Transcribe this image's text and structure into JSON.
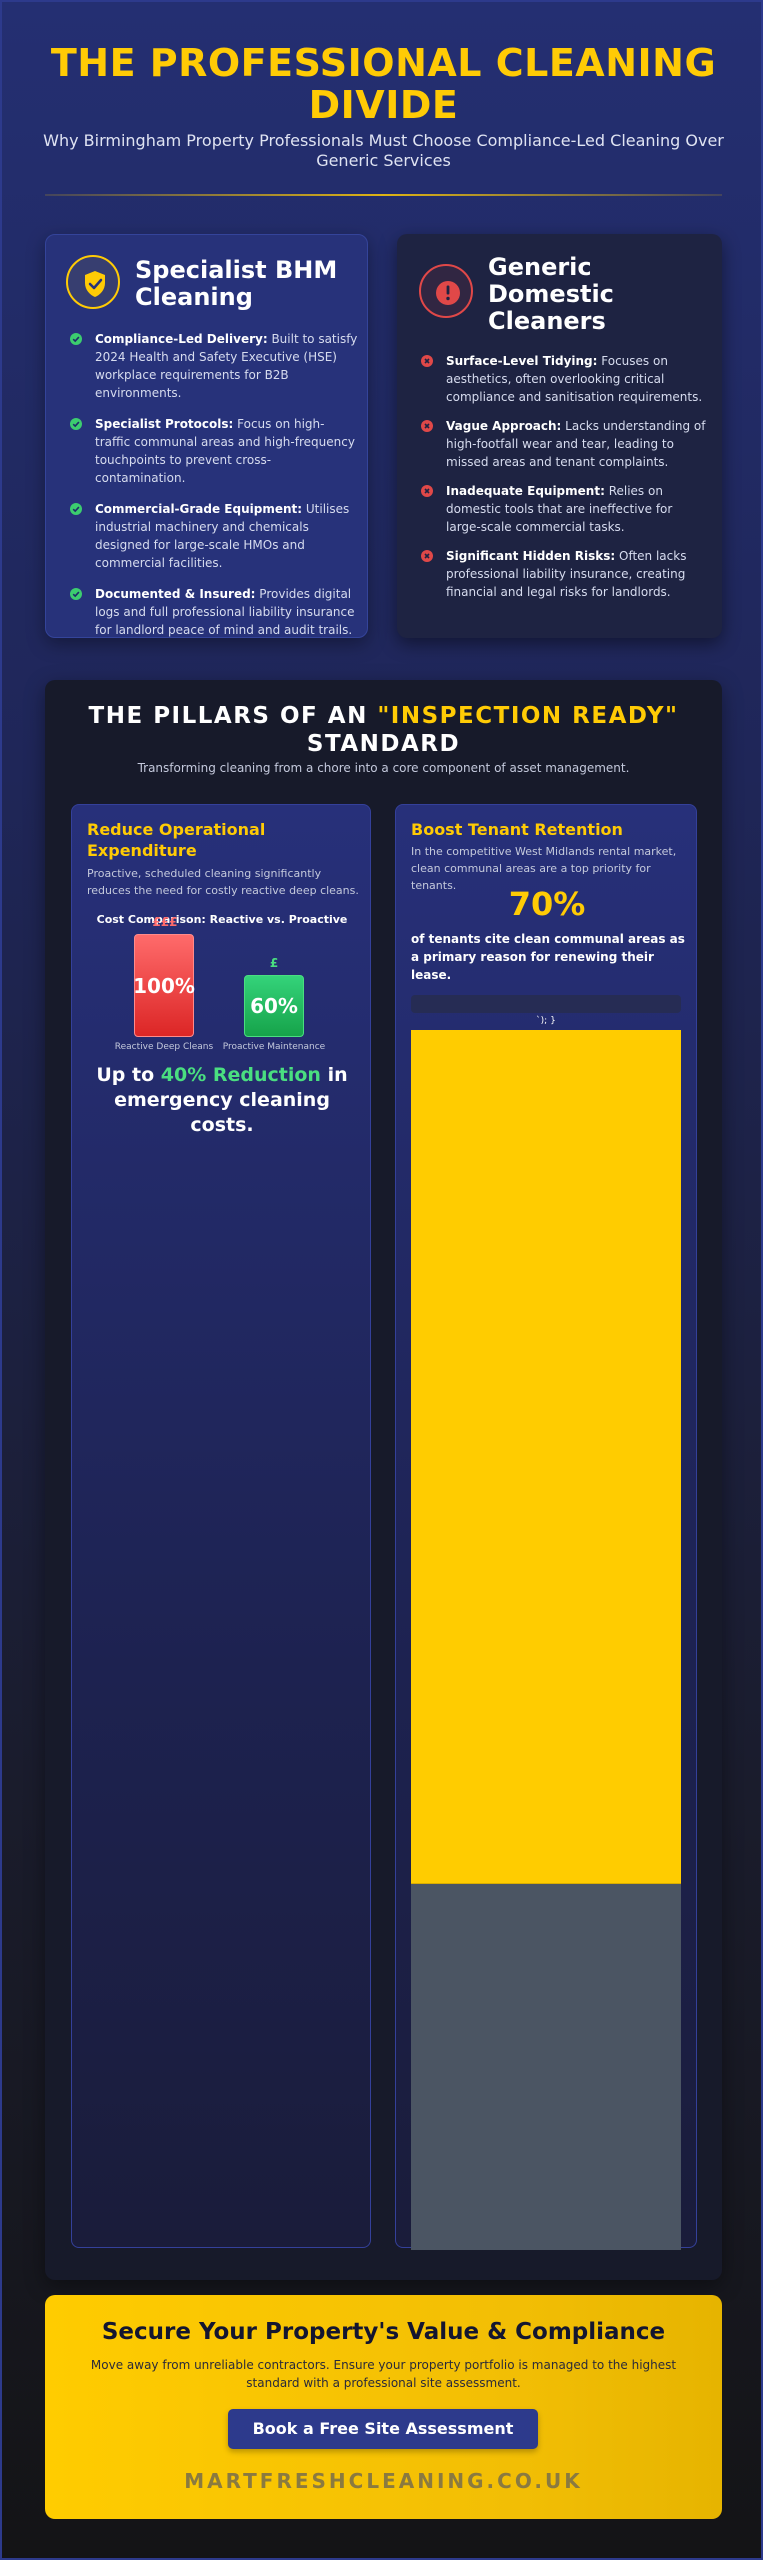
{
  "header": {
    "title": "THE PROFESSIONAL CLEANING DIVIDE",
    "subtitle": "Why Birmingham Property Professionals Must Choose Compliance-Led Cleaning Over Generic Services"
  },
  "specialist": {
    "icon": "shield-check-icon",
    "heading": "Specialist BHM Cleaning",
    "items": [
      {
        "label": "Compliance-Led Delivery:",
        "text": " Built to satisfy 2024 Health and Safety Executive (HSE) workplace requirements for B2B environments."
      },
      {
        "label": "Specialist Protocols:",
        "text": " Focus on high-traffic communal areas and high-frequency touchpoints to prevent cross-contamination."
      },
      {
        "label": "Commercial-Grade Equipment:",
        "text": " Utilises industrial machinery and chemicals designed for large-scale HMOs and commercial facilities."
      },
      {
        "label": "Documented & Insured:",
        "text": " Provides digital logs and full professional liability insurance for landlord peace of mind and audit trails."
      }
    ]
  },
  "generic": {
    "icon": "warning-icon",
    "heading": "Generic Domestic Cleaners",
    "items": [
      {
        "label": "Surface-Level Tidying:",
        "text": " Focuses on aesthetics, often overlooking critical compliance and sanitisation requirements."
      },
      {
        "label": "Vague Approach:",
        "text": " Lacks understanding of high-footfall wear and tear, leading to missed areas and tenant complaints."
      },
      {
        "label": "Inadequate Equipment:",
        "text": " Relies on domestic tools that are ineffective for large-scale commercial tasks."
      },
      {
        "label": "Significant Hidden Risks:",
        "text": " Often lacks professional liability insurance, creating financial and legal risks for landlords."
      }
    ]
  },
  "pillars": {
    "title_pre": "THE PILLARS OF AN ",
    "title_highlight": "\"INSPECTION READY\"",
    "title_post": " STANDARD",
    "subtitle": "Transforming cleaning from a chore into a core component of asset management."
  },
  "expenditure": {
    "title": "Reduce Operational Expenditure",
    "text": "Proactive, scheduled cleaning significantly reduces the need for costly reactive deep cleans.",
    "chart_title": "Cost Comparison: Reactive vs. Proactive",
    "reduction_pre": "Up to ",
    "reduction_highlight": "40% Reduction",
    "reduction_post": " in emergency cleaning costs."
  },
  "chart_data": {
    "type": "bar",
    "categories": [
      "Reactive Deep Cleans",
      "Proactive Maintenance"
    ],
    "values": [
      100,
      60
    ],
    "value_labels": [
      "100%",
      "60%"
    ],
    "cost_markers": [
      "£££",
      "£"
    ],
    "colors": [
      "#ef4444",
      "#22c55e"
    ]
  },
  "retention": {
    "title": "Boost Tenant Retention",
    "text": "In the competitive West Midlands rental market, clean communal areas are a top priority for tenants.",
    "stat": "70%",
    "stat_value": 70,
    "stat_text": "of tenants cite clean communal areas as a primary reason for renewing their lease.",
    "code_text": "`); }",
    "fill_color": "#ffcc00",
    "rest_color": "#4b5563"
  },
  "cta": {
    "title": "Secure Your Property's Value & Compliance",
    "text": "Move away from unreliable contractors. Ensure your property portfolio is managed to the highest standard with a professional site assessment.",
    "button": "Book a Free Site Assessment",
    "site": "MARTFRESHCLEANING.CO.UK"
  }
}
